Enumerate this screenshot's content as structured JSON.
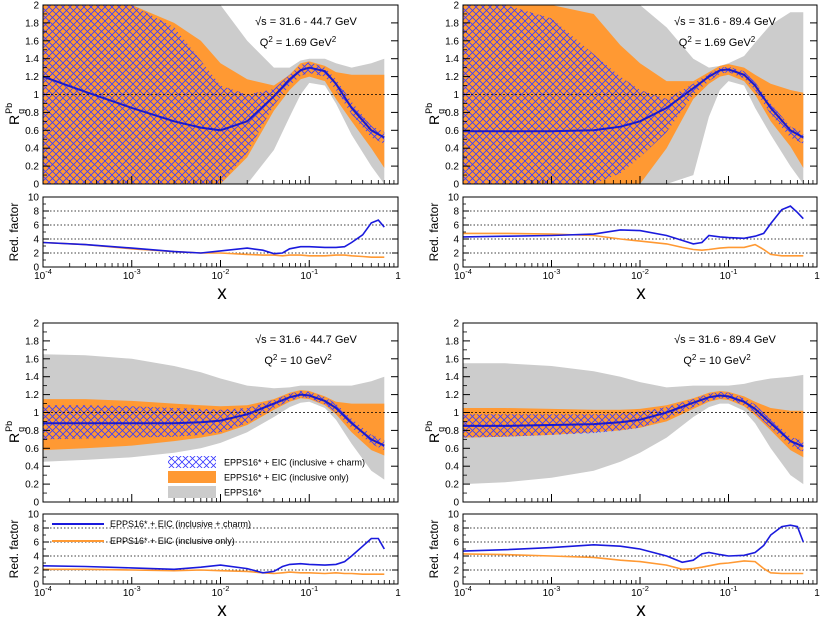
{
  "figure": {
    "title": "",
    "legend_upper": {
      "hatched_entry": "EPPS16* + EIC (inclusive + charm)",
      "orange_entry": "EPPS16* + EIC (inclusive only)",
      "grey_entry": "EPPS16*"
    },
    "legend_lower": {
      "blue_entry": "EPPS16* + EIC (inclusive + charm)",
      "orange_entry": "EPPS16* + EIC (inclusive only)"
    },
    "colors": {
      "grey_band": "#cccccc",
      "orange_band": "#ff9933",
      "hatch": "#3a3aff",
      "central": "#1a1acc",
      "red_charm": "#1a1add",
      "red_incl": "#ff9933"
    }
  },
  "chart_data": [
    {
      "panel": "top-left",
      "type": "area",
      "label_sqrt_s": "√s = 31.6 - 44.7 GeV",
      "label_q2": "Q² = 1.69 GeV²",
      "ylabel": "R_g^Pb",
      "xscale": "log",
      "xlim": [
        0.0001,
        1
      ],
      "ylim": [
        0,
        2
      ],
      "yticks": [
        "0",
        "0.2",
        "0.4",
        "0.6",
        "0.8",
        "1",
        "1.2",
        "1.4",
        "1.6",
        "1.8",
        "2"
      ],
      "reference_line": 1,
      "x": [
        0.0001,
        0.0003,
        0.001,
        0.003,
        0.006,
        0.01,
        0.02,
        0.04,
        0.06,
        0.08,
        0.1,
        0.15,
        0.2,
        0.3,
        0.5,
        0.7
      ],
      "central": [
        1.2,
        1.03,
        0.85,
        0.7,
        0.63,
        0.6,
        0.7,
        0.98,
        1.17,
        1.27,
        1.3,
        1.26,
        1.12,
        0.85,
        0.6,
        0.52
      ],
      "grey_band": {
        "upper": [
          2.0,
          2.0,
          2.0,
          2.0,
          2.0,
          2.0,
          1.6,
          1.3,
          1.3,
          1.38,
          1.4,
          1.4,
          1.35,
          1.3,
          1.35,
          1.4
        ],
        "lower": [
          0.0,
          0.0,
          0.0,
          0.0,
          0.0,
          0.0,
          0.0,
          0.38,
          0.75,
          1.0,
          1.13,
          1.1,
          0.9,
          0.55,
          0.2,
          0.0
        ]
      },
      "orange_band": {
        "upper": [
          2.0,
          2.0,
          2.0,
          1.8,
          1.6,
          1.35,
          1.17,
          1.1,
          1.22,
          1.35,
          1.37,
          1.32,
          1.25,
          1.22,
          1.22,
          1.22
        ],
        "lower": [
          0.0,
          0.0,
          0.0,
          0.0,
          0.0,
          0.0,
          0.3,
          0.82,
          1.05,
          1.17,
          1.2,
          1.15,
          0.95,
          0.7,
          0.4,
          0.18
        ]
      },
      "hatched_band": {
        "upper": [
          2.0,
          2.0,
          2.0,
          1.75,
          1.38,
          1.1,
          1.0,
          1.06,
          1.22,
          1.33,
          1.36,
          1.3,
          1.17,
          0.92,
          0.65,
          0.58
        ],
        "lower": [
          0.0,
          0.0,
          0.0,
          0.0,
          0.0,
          0.0,
          0.35,
          0.88,
          1.1,
          1.21,
          1.24,
          1.2,
          1.05,
          0.78,
          0.52,
          0.45
        ]
      },
      "reduction": {
        "ylabel": "Red. factor",
        "ylim": [
          0,
          10
        ],
        "yticks": [
          "0",
          "2",
          "4",
          "6",
          "8",
          "10"
        ],
        "gridlines": [
          2,
          4,
          6,
          8
        ],
        "x": [
          0.0001,
          0.0003,
          0.001,
          0.003,
          0.006,
          0.01,
          0.02,
          0.03,
          0.04,
          0.05,
          0.06,
          0.08,
          0.1,
          0.15,
          0.2,
          0.25,
          0.3,
          0.4,
          0.5,
          0.6,
          0.7
        ],
        "charm": [
          3.5,
          3.2,
          2.7,
          2.2,
          2.0,
          2.3,
          2.7,
          2.4,
          1.9,
          2.0,
          2.6,
          2.9,
          2.9,
          2.8,
          2.8,
          2.9,
          3.5,
          4.6,
          6.3,
          6.7,
          5.7
        ],
        "inclusive": [
          3.5,
          3.2,
          2.6,
          2.2,
          2.0,
          2.0,
          1.8,
          1.7,
          1.7,
          1.6,
          1.7,
          1.7,
          1.6,
          1.6,
          1.7,
          1.7,
          1.6,
          1.5,
          1.4,
          1.4,
          1.4
        ]
      }
    },
    {
      "panel": "top-right",
      "type": "area",
      "label_sqrt_s": "√s = 31.6 - 89.4 GeV",
      "label_q2": "Q² = 1.69 GeV²",
      "ylabel": "R_g^Pb",
      "xscale": "log",
      "xlim": [
        0.0001,
        1
      ],
      "ylim": [
        0,
        2
      ],
      "yticks": [
        "0",
        "0.2",
        "0.4",
        "0.6",
        "0.8",
        "1",
        "1.2",
        "1.4",
        "1.6",
        "1.8",
        "2"
      ],
      "reference_line": 1,
      "x": [
        0.0001,
        0.0003,
        0.001,
        0.003,
        0.006,
        0.01,
        0.02,
        0.04,
        0.06,
        0.08,
        0.1,
        0.15,
        0.2,
        0.3,
        0.5,
        0.7
      ],
      "central": [
        0.59,
        0.59,
        0.59,
        0.6,
        0.64,
        0.7,
        0.85,
        1.07,
        1.2,
        1.27,
        1.28,
        1.22,
        1.1,
        0.85,
        0.6,
        0.52
      ],
      "grey_band": {
        "upper": [
          2.0,
          2.0,
          2.0,
          2.0,
          2.0,
          2.0,
          1.75,
          1.4,
          1.3,
          1.32,
          1.35,
          1.43,
          1.58,
          1.78,
          1.92,
          1.92
        ],
        "lower": [
          0.0,
          0.0,
          0.0,
          0.0,
          0.0,
          0.0,
          0.0,
          0.1,
          0.75,
          1.05,
          1.15,
          1.1,
          0.85,
          0.55,
          0.2,
          0.0
        ]
      },
      "orange_band": {
        "upper": [
          2.0,
          2.0,
          2.0,
          1.9,
          1.55,
          1.35,
          1.15,
          1.15,
          1.25,
          1.32,
          1.34,
          1.3,
          1.22,
          1.12,
          1.05,
          1.02
        ],
        "lower": [
          0.0,
          0.0,
          0.0,
          0.0,
          0.0,
          0.0,
          0.4,
          0.95,
          1.12,
          1.2,
          1.22,
          1.15,
          1.0,
          0.7,
          0.42,
          0.18
        ]
      },
      "hatched_band": {
        "upper": [
          2.0,
          2.0,
          1.85,
          1.45,
          1.2,
          1.05,
          0.95,
          1.12,
          1.23,
          1.3,
          1.31,
          1.26,
          1.14,
          0.9,
          0.64,
          0.58
        ],
        "lower": [
          0.0,
          0.0,
          0.0,
          0.0,
          0.12,
          0.3,
          0.58,
          1.0,
          1.15,
          1.23,
          1.25,
          1.18,
          1.05,
          0.78,
          0.52,
          0.45
        ]
      },
      "reduction": {
        "ylabel": "Red. factor",
        "ylim": [
          0,
          10
        ],
        "yticks": [
          "0",
          "2",
          "4",
          "6",
          "8",
          "10"
        ],
        "gridlines": [
          2,
          4,
          6,
          8
        ],
        "x": [
          0.0001,
          0.0003,
          0.001,
          0.003,
          0.006,
          0.01,
          0.02,
          0.03,
          0.04,
          0.05,
          0.06,
          0.08,
          0.1,
          0.15,
          0.2,
          0.25,
          0.3,
          0.4,
          0.5,
          0.6,
          0.7
        ],
        "charm": [
          4.3,
          4.4,
          4.5,
          4.7,
          5.3,
          5.2,
          4.5,
          3.8,
          3.3,
          3.5,
          4.5,
          4.3,
          4.2,
          4.1,
          4.4,
          4.8,
          6.2,
          8.2,
          8.7,
          7.8,
          6.9
        ],
        "inclusive": [
          4.8,
          4.8,
          4.7,
          4.5,
          4.0,
          3.7,
          3.3,
          2.8,
          2.5,
          2.4,
          2.5,
          2.7,
          2.8,
          2.8,
          3.2,
          2.5,
          1.8,
          1.6,
          1.6,
          1.6,
          1.6
        ]
      }
    },
    {
      "panel": "bottom-left",
      "type": "area",
      "label_sqrt_s": "√s = 31.6 - 44.7 GeV",
      "label_q2": "Q² = 10 GeV²",
      "ylabel": "R_g^Pb",
      "xscale": "log",
      "xlim": [
        0.0001,
        1
      ],
      "ylim": [
        0,
        2
      ],
      "yticks": [
        "0",
        "0.2",
        "0.4",
        "0.6",
        "0.8",
        "1",
        "1.2",
        "1.4",
        "1.6",
        "1.8",
        "2"
      ],
      "reference_line": 1,
      "x": [
        0.0001,
        0.0003,
        0.001,
        0.003,
        0.006,
        0.01,
        0.02,
        0.04,
        0.06,
        0.08,
        0.1,
        0.15,
        0.2,
        0.3,
        0.5,
        0.7
      ],
      "central": [
        0.88,
        0.88,
        0.88,
        0.88,
        0.89,
        0.91,
        0.98,
        1.1,
        1.17,
        1.2,
        1.19,
        1.13,
        1.05,
        0.88,
        0.7,
        0.63
      ],
      "grey_band": {
        "upper": [
          1.65,
          1.64,
          1.6,
          1.52,
          1.45,
          1.38,
          1.3,
          1.27,
          1.28,
          1.3,
          1.3,
          1.3,
          1.3,
          1.3,
          1.35,
          1.4
        ],
        "lower": [
          0.45,
          0.47,
          0.5,
          0.55,
          0.6,
          0.66,
          0.78,
          0.95,
          1.06,
          1.11,
          1.12,
          1.05,
          0.92,
          0.65,
          0.35,
          0.25
        ]
      },
      "orange_band": {
        "upper": [
          1.15,
          1.15,
          1.13,
          1.1,
          1.08,
          1.07,
          1.08,
          1.15,
          1.22,
          1.25,
          1.24,
          1.18,
          1.12,
          1.1,
          1.1,
          1.1
        ],
        "lower": [
          0.58,
          0.6,
          0.63,
          0.68,
          0.72,
          0.76,
          0.86,
          1.03,
          1.12,
          1.16,
          1.15,
          1.08,
          0.98,
          0.78,
          0.58,
          0.52
        ]
      },
      "hatched_band": {
        "upper": [
          1.08,
          1.08,
          1.07,
          1.05,
          1.04,
          1.03,
          1.05,
          1.14,
          1.21,
          1.24,
          1.23,
          1.17,
          1.1,
          0.93,
          0.75,
          0.69
        ],
        "lower": [
          0.7,
          0.71,
          0.72,
          0.73,
          0.75,
          0.78,
          0.88,
          1.05,
          1.13,
          1.17,
          1.16,
          1.09,
          1.0,
          0.83,
          0.65,
          0.58
        ]
      },
      "reduction": {
        "ylabel": "Red. factor",
        "ylim": [
          0,
          10
        ],
        "yticks": [
          "0",
          "2",
          "4",
          "6",
          "8",
          "10"
        ],
        "gridlines": [
          2,
          4,
          6,
          8
        ],
        "x": [
          0.0001,
          0.0003,
          0.001,
          0.003,
          0.006,
          0.01,
          0.02,
          0.03,
          0.04,
          0.05,
          0.06,
          0.08,
          0.1,
          0.15,
          0.2,
          0.25,
          0.3,
          0.4,
          0.5,
          0.6,
          0.7
        ],
        "charm": [
          2.6,
          2.5,
          2.3,
          2.1,
          2.4,
          2.7,
          2.2,
          1.6,
          1.8,
          2.5,
          2.8,
          2.9,
          2.8,
          2.7,
          2.8,
          3.2,
          4.0,
          5.4,
          6.5,
          6.5,
          5.0
        ],
        "inclusive": [
          2.1,
          2.1,
          2.0,
          1.9,
          2.0,
          1.9,
          1.8,
          1.6,
          1.5,
          1.6,
          1.7,
          1.6,
          1.6,
          1.5,
          1.6,
          1.5,
          1.5,
          1.4,
          1.4,
          1.4,
          1.4
        ]
      }
    },
    {
      "panel": "bottom-right",
      "type": "area",
      "label_sqrt_s": "√s = 31.6 - 89.4 GeV",
      "label_q2": "Q² = 10 GeV²",
      "ylabel": "R_g^Pb",
      "xscale": "log",
      "xlim": [
        0.0001,
        1
      ],
      "ylim": [
        0,
        2
      ],
      "yticks": [
        "0",
        "0.2",
        "0.4",
        "0.6",
        "0.8",
        "1",
        "1.2",
        "1.4",
        "1.6",
        "1.8",
        "2"
      ],
      "reference_line": 1,
      "x": [
        0.0001,
        0.0003,
        0.001,
        0.003,
        0.006,
        0.01,
        0.02,
        0.04,
        0.06,
        0.08,
        0.1,
        0.15,
        0.2,
        0.3,
        0.5,
        0.7
      ],
      "central": [
        0.85,
        0.85,
        0.86,
        0.87,
        0.89,
        0.92,
        1.0,
        1.11,
        1.17,
        1.19,
        1.18,
        1.12,
        1.04,
        0.88,
        0.68,
        0.62
      ],
      "grey_band": {
        "upper": [
          1.55,
          1.55,
          1.52,
          1.46,
          1.4,
          1.34,
          1.28,
          1.3,
          1.3,
          1.3,
          1.3,
          1.32,
          1.35,
          1.38,
          1.4,
          1.42
        ],
        "lower": [
          0.2,
          0.22,
          0.27,
          0.35,
          0.45,
          0.55,
          0.72,
          0.95,
          1.06,
          1.1,
          1.1,
          1.02,
          0.88,
          0.6,
          0.3,
          0.2
        ]
      },
      "orange_band": {
        "upper": [
          1.05,
          1.05,
          1.04,
          1.03,
          1.03,
          1.04,
          1.08,
          1.16,
          1.22,
          1.24,
          1.23,
          1.18,
          1.12,
          1.05,
          1.02,
          1.02
        ],
        "lower": [
          0.72,
          0.73,
          0.75,
          0.78,
          0.8,
          0.83,
          0.9,
          1.04,
          1.12,
          1.15,
          1.14,
          1.07,
          0.97,
          0.8,
          0.58,
          0.5
        ]
      },
      "hatched_band": {
        "upper": [
          0.98,
          0.98,
          0.98,
          0.98,
          0.99,
          1.01,
          1.06,
          1.15,
          1.21,
          1.23,
          1.22,
          1.16,
          1.09,
          0.93,
          0.73,
          0.68
        ],
        "lower": [
          0.72,
          0.73,
          0.75,
          0.77,
          0.8,
          0.83,
          0.93,
          1.06,
          1.13,
          1.16,
          1.15,
          1.08,
          0.99,
          0.83,
          0.63,
          0.56
        ]
      },
      "reduction": {
        "ylabel": "Red. factor",
        "ylim": [
          0,
          10
        ],
        "yticks": [
          "0",
          "2",
          "4",
          "6",
          "8",
          "10"
        ],
        "gridlines": [
          2,
          4,
          6,
          8
        ],
        "x": [
          0.0001,
          0.0003,
          0.001,
          0.003,
          0.006,
          0.01,
          0.02,
          0.03,
          0.04,
          0.05,
          0.06,
          0.08,
          0.1,
          0.15,
          0.2,
          0.25,
          0.3,
          0.4,
          0.5,
          0.6,
          0.7
        ],
        "charm": [
          4.7,
          4.9,
          5.2,
          5.6,
          5.4,
          5.0,
          4.0,
          3.1,
          3.4,
          4.3,
          4.5,
          4.2,
          4.0,
          4.1,
          4.5,
          5.5,
          7.0,
          8.2,
          8.4,
          8.2,
          6.0
        ],
        "inclusive": [
          4.3,
          4.2,
          4.0,
          3.8,
          3.4,
          3.2,
          2.7,
          2.1,
          2.2,
          2.4,
          2.6,
          2.9,
          3.0,
          3.3,
          3.2,
          2.2,
          1.6,
          1.5,
          1.5,
          1.5,
          1.5
        ]
      }
    }
  ]
}
